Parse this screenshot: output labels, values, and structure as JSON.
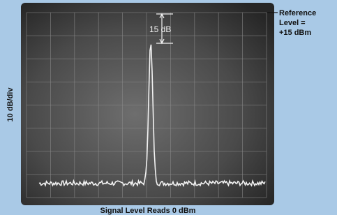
{
  "screen": {
    "peak_label": "15 dB",
    "reference_label": [
      "Reference",
      "Level =",
      "+15 dBm"
    ],
    "scale_label": "10 dB/div",
    "caption": "Signal Level Reads 0 dBm"
  }
}
